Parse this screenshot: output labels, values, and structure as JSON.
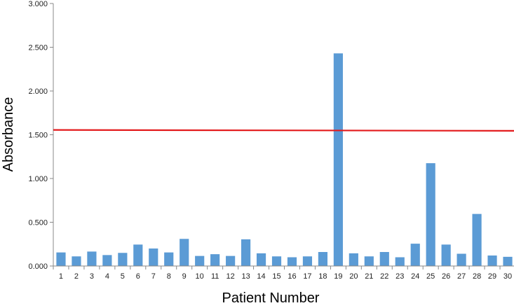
{
  "chart_data": {
    "type": "bar",
    "xlabel": "Patient Number",
    "ylabel": "Absorbance",
    "ylim": [
      0,
      3
    ],
    "ytick_values": [
      0,
      0.5,
      1,
      1.5,
      2,
      2.5,
      3
    ],
    "ytick_labels": [
      "0.000",
      "0.500",
      "1.000",
      "1.500",
      "2.000",
      "2.500",
      "3.000"
    ],
    "grid": false,
    "categories": [
      "1",
      "2",
      "3",
      "4",
      "5",
      "6",
      "7",
      "8",
      "9",
      "10",
      "11",
      "12",
      "13",
      "14",
      "15",
      "16",
      "17",
      "18",
      "19",
      "20",
      "21",
      "22",
      "23",
      "24",
      "25",
      "26",
      "27",
      "28",
      "29",
      "30"
    ],
    "values": [
      0.155,
      0.11,
      0.165,
      0.125,
      0.15,
      0.245,
      0.2,
      0.155,
      0.31,
      0.115,
      0.135,
      0.115,
      0.305,
      0.145,
      0.11,
      0.1,
      0.11,
      0.16,
      2.43,
      0.145,
      0.11,
      0.16,
      0.1,
      0.255,
      1.175,
      0.245,
      0.14,
      0.595,
      0.12,
      0.105
    ],
    "bar_color": "#5b9bd5",
    "threshold_line": {
      "y_start": 1.555,
      "y_end": 1.545,
      "color": "#e31a1c"
    }
  }
}
